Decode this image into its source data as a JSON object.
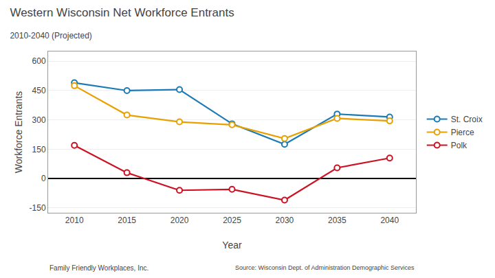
{
  "chart_data": {
    "type": "line",
    "title": "Western Wisconsin Net Workforce Entrants",
    "subtitle": "2010-2040 (Projected)",
    "x_label": "Year",
    "y_label": "Workforce Entrants",
    "x": [
      2010,
      2015,
      2020,
      2025,
      2030,
      2035,
      2040
    ],
    "series": [
      {
        "name": "St. Croix",
        "color": "#1a7ab5",
        "values": [
          490,
          450,
          455,
          280,
          175,
          330,
          315
        ]
      },
      {
        "name": "Pierce",
        "color": "#e8a000",
        "values": [
          475,
          325,
          290,
          275,
          205,
          308,
          295
        ]
      },
      {
        "name": "Polk",
        "color": "#cc1122",
        "values": [
          170,
          30,
          -60,
          -55,
          -110,
          55,
          105
        ]
      }
    ],
    "xlim": [
      2007.5,
      2042.5
    ],
    "xticks": [
      2010,
      2015,
      2020,
      2025,
      2030,
      2035,
      2040
    ],
    "ylim": [
      -175,
      650
    ],
    "yticks": [
      -150,
      0,
      150,
      300,
      450,
      600
    ],
    "grid": true,
    "legend": "right",
    "marker": "circle",
    "annotations": [
      "Family Friendly Workplaces, Inc.",
      "Source: Wisconsin Dept. of Administration Demographic Services"
    ]
  }
}
